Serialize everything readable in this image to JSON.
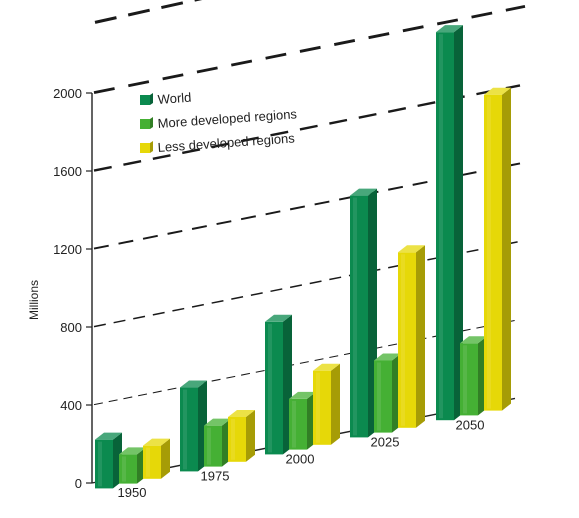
{
  "chart_data": {
    "type": "bar",
    "ylabel": "Millions",
    "ylim": [
      0,
      2000
    ],
    "yticks": [
      0,
      400,
      800,
      1200,
      1600,
      2000
    ],
    "categories": [
      "1950",
      "1975",
      "2000",
      "2025",
      "2050"
    ],
    "series": [
      {
        "name": "World",
        "color": "#0b8a4f",
        "values": [
          250,
          430,
          680,
          1240,
          1990
        ]
      },
      {
        "name": "More developed regions",
        "color": "#45b034",
        "values": [
          150,
          210,
          260,
          370,
          370
        ]
      },
      {
        "name": "Less developed regions",
        "color": "#e6d808",
        "values": [
          170,
          230,
          380,
          900,
          1620
        ]
      }
    ],
    "legend": "top-left",
    "grid": true
  }
}
